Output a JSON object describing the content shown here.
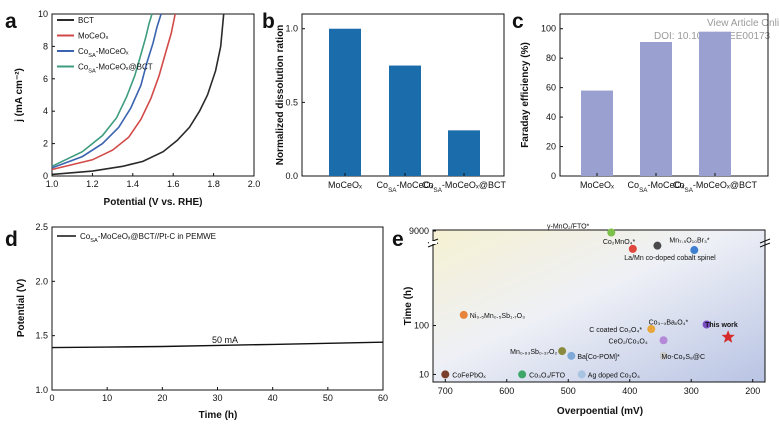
{
  "watermark": {
    "line1": "View Article Online",
    "line2": "DOI: 10.1039/D4EE00173"
  },
  "chart_data": [
    {
      "panel": "a",
      "type": "line",
      "xlabel": "Potential (V vs. RHE)",
      "ylabel": "j (mA cm⁻²)",
      "xlim": [
        1.0,
        2.0
      ],
      "ylim": [
        0,
        10
      ],
      "xticks": [
        "1.0",
        "1.2",
        "1.4",
        "1.6",
        "1.8",
        "2.0"
      ],
      "yticks": [
        "0",
        "2",
        "4",
        "6",
        "8",
        "10"
      ],
      "legend_position": "top-left",
      "series": [
        {
          "name": "BCT",
          "color": "#2a2a2a",
          "x": [
            1.0,
            1.2,
            1.35,
            1.45,
            1.55,
            1.62,
            1.68,
            1.73,
            1.77,
            1.81,
            1.835,
            1.85
          ],
          "y": [
            0.1,
            0.3,
            0.6,
            0.9,
            1.5,
            2.2,
            3.0,
            4.0,
            5.0,
            6.5,
            8.0,
            10.0
          ]
        },
        {
          "name": "MoCeOₓ",
          "color": "#d24a48",
          "x": [
            1.0,
            1.2,
            1.3,
            1.38,
            1.44,
            1.49,
            1.53,
            1.56,
            1.59,
            1.61
          ],
          "y": [
            0.4,
            1.0,
            1.6,
            2.4,
            3.5,
            4.8,
            6.2,
            7.5,
            8.8,
            10.0
          ]
        },
        {
          "name": "Co_SA-MoCeOₓ",
          "color": "#3a63b0",
          "x": [
            1.0,
            1.15,
            1.25,
            1.33,
            1.39,
            1.44,
            1.47,
            1.5,
            1.52,
            1.54
          ],
          "y": [
            0.5,
            1.2,
            2.0,
            3.0,
            4.2,
            5.6,
            7.0,
            8.2,
            9.2,
            10.0
          ]
        },
        {
          "name": "Co_SA-MoCeOₓ@BCT",
          "color": "#3e9c7f",
          "x": [
            1.0,
            1.15,
            1.25,
            1.32,
            1.37,
            1.41,
            1.44,
            1.465,
            1.48,
            1.495
          ],
          "y": [
            0.6,
            1.5,
            2.5,
            3.6,
            4.9,
            6.2,
            7.5,
            8.6,
            9.4,
            10.0
          ]
        }
      ]
    },
    {
      "panel": "b",
      "type": "bar",
      "ylabel": "Normalized dissolution ration",
      "ylim": [
        0,
        1.1
      ],
      "yticks": [
        "0.0",
        "0.5",
        "1.0"
      ],
      "color": "#1a6cab",
      "categories": [
        "MoCeOₓ",
        "Co_SA-MoCeOₓ",
        "Co_SA-MoCeOₓ@BCT"
      ],
      "values": [
        1.0,
        0.75,
        0.31
      ]
    },
    {
      "panel": "c",
      "type": "bar",
      "ylabel": "Faraday efficiency (%)",
      "ylim": [
        0,
        110
      ],
      "yticks": [
        "0",
        "20",
        "40",
        "60",
        "80",
        "100"
      ],
      "color": "#9aa0cf",
      "categories": [
        "MoCeOₓ",
        "Co_SA-MoCeOₓ",
        "Co_SA-MoCeOₓ@BCT"
      ],
      "values": [
        58,
        91,
        98
      ]
    },
    {
      "panel": "d",
      "type": "line",
      "xlabel": "Time (h)",
      "ylabel": "Potential (V)",
      "xlim": [
        0,
        60
      ],
      "ylim": [
        1.0,
        2.5
      ],
      "xticks": [
        "0",
        "10",
        "20",
        "30",
        "40",
        "50",
        "60"
      ],
      "yticks": [
        "1.0",
        "1.5",
        "2.0",
        "2.5"
      ],
      "legend_position": "top-left",
      "annotation": "50 mA",
      "series": [
        {
          "name": "Co_SA-MoCeOₓ@BCT//Pt-C in PEMWE",
          "color": "#111111",
          "x": [
            0,
            10,
            20,
            30,
            40,
            50,
            60
          ],
          "y": [
            1.39,
            1.395,
            1.4,
            1.41,
            1.42,
            1.43,
            1.44
          ]
        }
      ]
    },
    {
      "panel": "e",
      "type": "scatter",
      "xlabel": "Overpoential (mV)",
      "ylabel": "Time (h)",
      "xlim": [
        720,
        180
      ],
      "ylim": [
        7,
        9000
      ],
      "y_scale": "log",
      "xticks": [
        "700",
        "600",
        "500",
        "400",
        "300",
        "200"
      ],
      "yticks": [
        "10",
        "100",
        "9000"
      ],
      "points": [
        {
          "label": "γ-MnO₂/FTO*",
          "x": 430,
          "y": 8000,
          "color": "#7cc04a"
        },
        {
          "label": "Co₂MnO₄*",
          "x": 395,
          "y": 3700,
          "color": "#e0473d"
        },
        {
          "label": "Mn₇.₅O₁₀Br₃*",
          "x": 355,
          "y": 4300,
          "color": "#4a4a4a"
        },
        {
          "label": "La/Mn co-doped cobalt spinel",
          "x": 295,
          "y": 3500,
          "color": "#3f7fcf"
        },
        {
          "label": "Ni₀.₅Mn₀.₅Sb₁.₇O₃",
          "x": 670,
          "y": 165,
          "color": "#e8833a"
        },
        {
          "label": "Co₃₋ₓBaₓO₄*",
          "x": 275,
          "y": 105,
          "color": "#7b4fc4"
        },
        {
          "label": "C coated Co₃O₄*",
          "x": 365,
          "y": 85,
          "color": "#e9a63a"
        },
        {
          "label": "This work",
          "x": 240,
          "y": 58,
          "color": "#d52b2b",
          "marker": "star"
        },
        {
          "label": "CeO₂/Co₃O₄",
          "x": 345,
          "y": 50,
          "color": "#b48ad8"
        },
        {
          "label": "Mn₀.₆₃Sb₀.₃₇O₂",
          "x": 510,
          "y": 30,
          "color": "#8a8a3f"
        },
        {
          "label": "Ba[Co-POM]*",
          "x": 495,
          "y": 24,
          "color": "#7fa9d6"
        },
        {
          "label": "Mo-Co₉S₈@C",
          "x": 345,
          "y": 24,
          "color": "#c9c9c9"
        },
        {
          "label": "CoFePbOₓ",
          "x": 700,
          "y": 10,
          "color": "#7a3e2a"
        },
        {
          "label": "Co₃O₄/FTO",
          "x": 575,
          "y": 10,
          "color": "#3fa66a"
        },
        {
          "label": "Ag doped Co₃O₄",
          "x": 478,
          "y": 10,
          "color": "#a9c3e3"
        }
      ]
    }
  ]
}
